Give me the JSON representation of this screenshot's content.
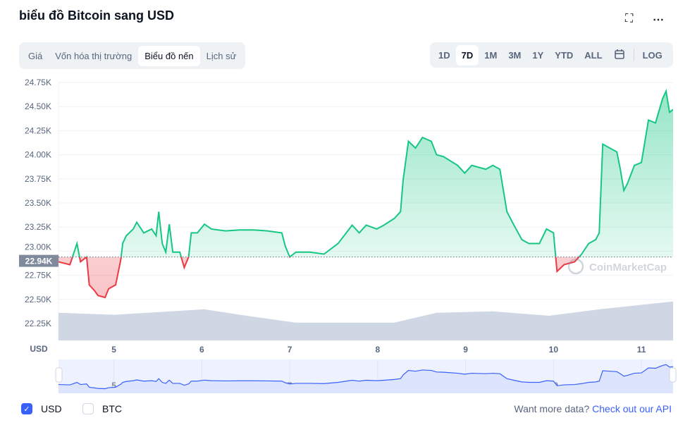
{
  "header": {
    "title": "biểu đồ Bitcoin sang USD",
    "fullscreen_icon": "expand-icon",
    "more_icon": "more-horizontal-icon"
  },
  "tabs": [
    {
      "label": "Giá"
    },
    {
      "label": "Vốn hóa thị trường"
    },
    {
      "label": "Biểu đồ nến",
      "active": true
    },
    {
      "label": "Lịch sử"
    }
  ],
  "ranges": {
    "items": [
      "1D",
      "7D",
      "1M",
      "3M",
      "1Y",
      "YTD",
      "ALL"
    ],
    "active": "7D",
    "calendar_icon": "calendar-icon",
    "log_label": "LOG"
  },
  "colors": {
    "up": "#16c784",
    "down": "#ea3943",
    "volume": "#cfd6e4",
    "navigator": "#3861fb",
    "link": "#3861fb"
  },
  "watermark": "CoinMarketCap",
  "footer": {
    "usd_label": "USD",
    "usd_checked": true,
    "btc_label": "BTC",
    "btc_checked": false,
    "want_more": "Want more data?",
    "api_link": "Check out our API"
  },
  "chart_data": {
    "type": "line",
    "currency_label": "USD",
    "baseline": 22.94,
    "baseline_label": "22.94K",
    "yticks": [
      "22.25K",
      "22.50K",
      "22.75K",
      "23.00K",
      "23.25K",
      "23.50K",
      "23.75K",
      "24.00K",
      "24.25K",
      "24.50K",
      "24.75K"
    ],
    "ylim": [
      22.25,
      24.75
    ],
    "xticks": [
      "5",
      "6",
      "7",
      "8",
      "9",
      "10",
      "11"
    ],
    "xlim": [
      4.37,
      11.36
    ],
    "price": [
      [
        4.37,
        22.89
      ],
      [
        4.5,
        22.86
      ],
      [
        4.58,
        23.08
      ],
      [
        4.62,
        22.89
      ],
      [
        4.69,
        22.94
      ],
      [
        4.72,
        22.65
      ],
      [
        4.78,
        22.59
      ],
      [
        4.82,
        22.54
      ],
      [
        4.9,
        22.52
      ],
      [
        4.94,
        22.61
      ],
      [
        5.02,
        22.65
      ],
      [
        5.08,
        22.92
      ],
      [
        5.1,
        23.08
      ],
      [
        5.14,
        23.16
      ],
      [
        5.22,
        23.23
      ],
      [
        5.26,
        23.3
      ],
      [
        5.34,
        23.19
      ],
      [
        5.43,
        23.23
      ],
      [
        5.48,
        23.16
      ],
      [
        5.51,
        23.41
      ],
      [
        5.55,
        23.08
      ],
      [
        5.59,
        22.99
      ],
      [
        5.63,
        23.28
      ],
      [
        5.67,
        22.99
      ],
      [
        5.75,
        22.99
      ],
      [
        5.8,
        22.83
      ],
      [
        5.85,
        22.94
      ],
      [
        5.88,
        23.19
      ],
      [
        5.95,
        23.19
      ],
      [
        6.03,
        23.28
      ],
      [
        6.11,
        23.23
      ],
      [
        6.27,
        23.21
      ],
      [
        6.43,
        23.22
      ],
      [
        6.59,
        23.22
      ],
      [
        6.75,
        23.21
      ],
      [
        6.91,
        23.19
      ],
      [
        6.95,
        23.05
      ],
      [
        7.0,
        22.94
      ],
      [
        7.07,
        22.99
      ],
      [
        7.23,
        22.99
      ],
      [
        7.39,
        22.97
      ],
      [
        7.55,
        23.08
      ],
      [
        7.71,
        23.27
      ],
      [
        7.79,
        23.19
      ],
      [
        7.87,
        23.27
      ],
      [
        7.99,
        23.23
      ],
      [
        8.07,
        23.27
      ],
      [
        8.19,
        23.34
      ],
      [
        8.26,
        23.41
      ],
      [
        8.29,
        23.74
      ],
      [
        8.35,
        24.14
      ],
      [
        8.43,
        24.07
      ],
      [
        8.51,
        24.18
      ],
      [
        8.61,
        24.14
      ],
      [
        8.67,
        24.0
      ],
      [
        8.75,
        23.98
      ],
      [
        8.91,
        23.89
      ],
      [
        8.99,
        23.81
      ],
      [
        9.07,
        23.89
      ],
      [
        9.23,
        23.85
      ],
      [
        9.31,
        23.89
      ],
      [
        9.39,
        23.85
      ],
      [
        9.43,
        23.63
      ],
      [
        9.47,
        23.41
      ],
      [
        9.55,
        23.27
      ],
      [
        9.64,
        23.12
      ],
      [
        9.72,
        23.08
      ],
      [
        9.84,
        23.08
      ],
      [
        9.92,
        23.23
      ],
      [
        10.0,
        23.19
      ],
      [
        10.04,
        22.79
      ],
      [
        10.12,
        22.86
      ],
      [
        10.24,
        22.89
      ],
      [
        10.32,
        22.97
      ],
      [
        10.4,
        23.08
      ],
      [
        10.48,
        23.12
      ],
      [
        10.52,
        23.19
      ],
      [
        10.56,
        24.11
      ],
      [
        10.64,
        24.07
      ],
      [
        10.72,
        24.03
      ],
      [
        10.76,
        23.85
      ],
      [
        10.8,
        23.63
      ],
      [
        10.84,
        23.7
      ],
      [
        10.92,
        23.89
      ],
      [
        11.0,
        23.92
      ],
      [
        11.08,
        24.36
      ],
      [
        11.16,
        24.33
      ],
      [
        11.24,
        24.58
      ],
      [
        11.28,
        24.66
      ],
      [
        11.32,
        24.44
      ],
      [
        11.36,
        24.47
      ]
    ],
    "volume_relative": [
      [
        4.37,
        0.56
      ],
      [
        5.0,
        0.52
      ],
      [
        6.03,
        0.63
      ],
      [
        6.51,
        0.5
      ],
      [
        7.07,
        0.36
      ],
      [
        8.19,
        0.36
      ],
      [
        8.67,
        0.56
      ],
      [
        9.31,
        0.59
      ],
      [
        9.95,
        0.5
      ],
      [
        10.52,
        0.63
      ],
      [
        11.36,
        0.79
      ]
    ]
  }
}
